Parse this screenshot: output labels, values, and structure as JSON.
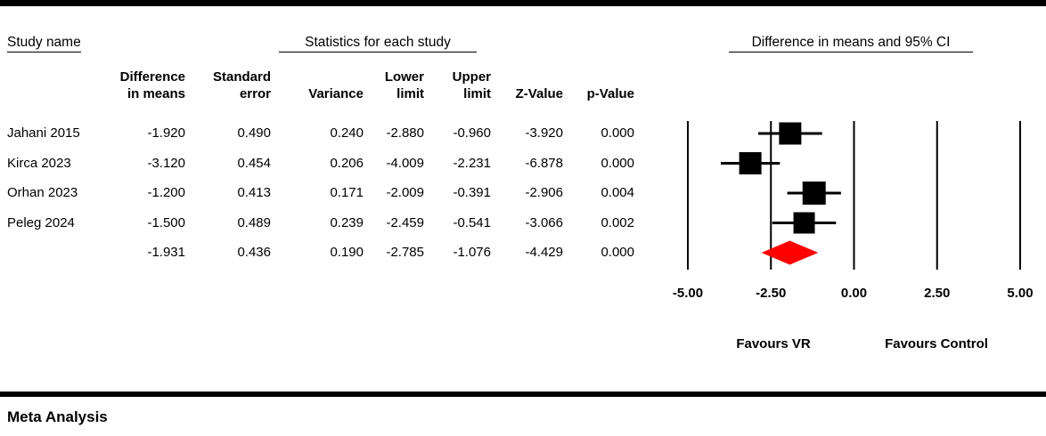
{
  "header": {
    "study_column_title": "Study name",
    "statistics_section_title": "Statistics for each study",
    "plot_section_title": "Difference in means and 95% CI"
  },
  "table": {
    "columns": [
      {
        "lines": [
          "Difference",
          "in means"
        ]
      },
      {
        "lines": [
          "Standard",
          "error"
        ]
      },
      {
        "lines": [
          "Variance"
        ]
      },
      {
        "lines": [
          "Lower",
          "limit"
        ]
      },
      {
        "lines": [
          "Upper",
          "limit"
        ]
      },
      {
        "lines": [
          "Z-Value"
        ]
      },
      {
        "lines": [
          "p-Value"
        ]
      }
    ],
    "rows": [
      {
        "study": "Jahani 2015",
        "values": [
          "-1.920",
          "0.490",
          "0.240",
          "-2.880",
          "-0.960",
          "-3.920",
          "0.000"
        ]
      },
      {
        "study": "Kirca 2023",
        "values": [
          "-3.120",
          "0.454",
          "0.206",
          "-4.009",
          "-2.231",
          "-6.878",
          "0.000"
        ]
      },
      {
        "study": "Orhan 2023",
        "values": [
          "-1.200",
          "0.413",
          "0.171",
          "-2.009",
          "-0.391",
          "-2.906",
          "0.004"
        ]
      },
      {
        "study": "Peleg 2024",
        "values": [
          "-1.500",
          "0.489",
          "0.239",
          "-2.459",
          "-0.541",
          "-3.066",
          "0.002"
        ]
      },
      {
        "study": "",
        "values": [
          "-1.931",
          "0.436",
          "0.190",
          "-2.785",
          "-1.076",
          "-4.429",
          "0.000"
        ]
      }
    ]
  },
  "chart_data": {
    "type": "forest",
    "title": "Difference in means and 95% CI",
    "xlim": [
      -5,
      5
    ],
    "tick_values": [
      -5,
      -2.5,
      0,
      2.5,
      5
    ],
    "tick_labels": [
      "-5.00",
      "-2.50",
      "0.00",
      "2.50",
      "5.00"
    ],
    "studies": [
      {
        "name": "Jahani 2015",
        "mean": -1.92,
        "lower": -2.88,
        "upper": -0.96,
        "marker_size": 25
      },
      {
        "name": "Kirca 2023",
        "mean": -3.12,
        "lower": -4.009,
        "upper": -2.231,
        "marker_size": 25
      },
      {
        "name": "Orhan 2023",
        "mean": -1.2,
        "lower": -2.009,
        "upper": -0.391,
        "marker_size": 26
      },
      {
        "name": "Peleg 2024",
        "mean": -1.5,
        "lower": -2.459,
        "upper": -0.541,
        "marker_size": 24
      }
    ],
    "summary": {
      "mean": -1.931,
      "lower": -2.785,
      "upper": -1.076
    },
    "annotations": {
      "left": "Favours VR",
      "right": "Favours Control"
    },
    "colors": {
      "study_marker": "#000000",
      "summary_diamond": "#FF0000",
      "line": "#000000"
    }
  },
  "footer": {
    "label": "Meta Analysis"
  }
}
